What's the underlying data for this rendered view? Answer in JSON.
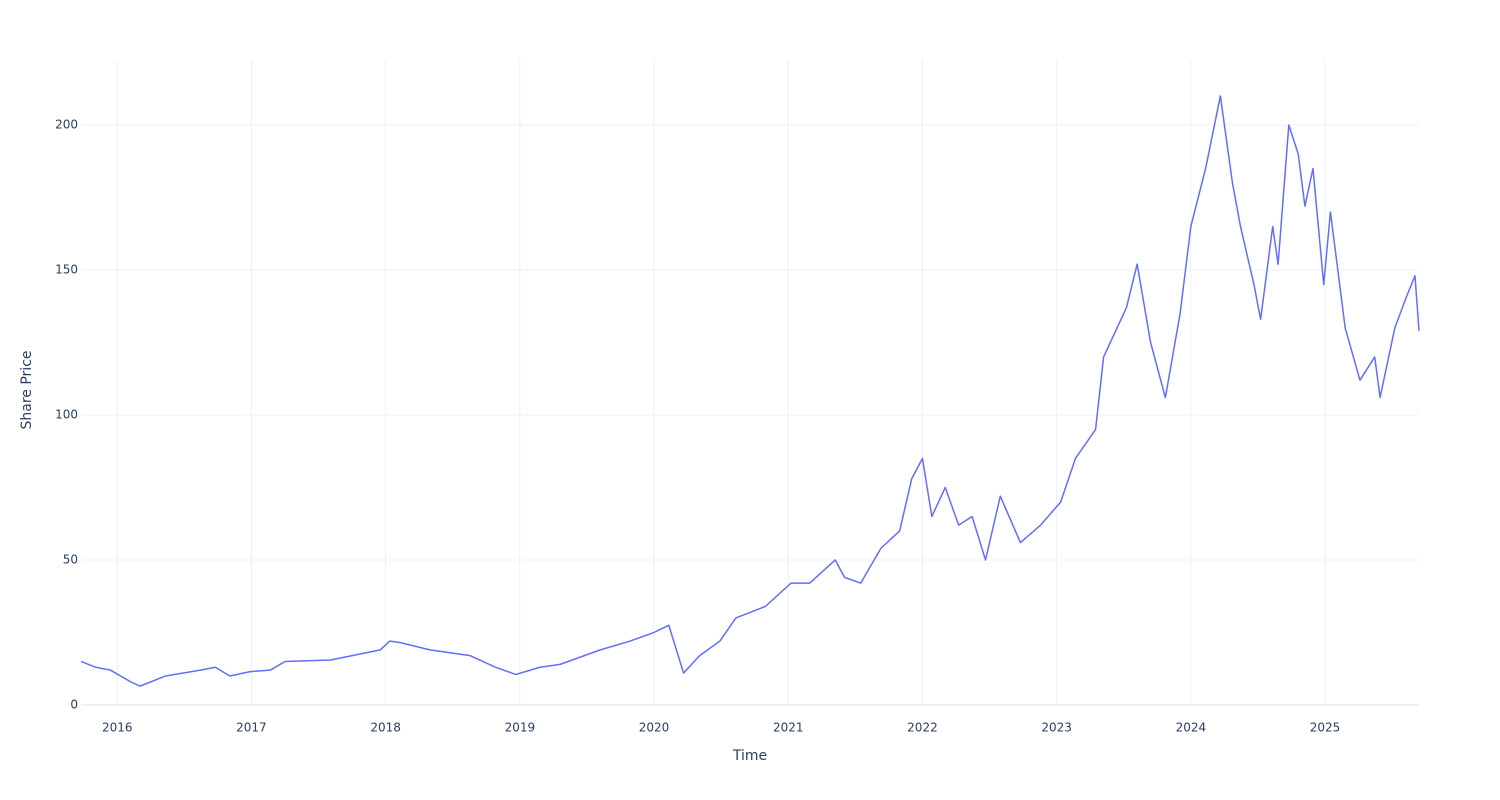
{
  "chart_data": {
    "type": "line",
    "x_label": "Time",
    "y_label": "Share Price",
    "x": [
      2015.73,
      2015.84,
      2015.95,
      2016.1,
      2016.17,
      2016.36,
      2016.62,
      2016.73,
      2016.84,
      2016.99,
      2017.14,
      2017.25,
      2017.59,
      2017.96,
      2018.03,
      2018.11,
      2018.33,
      2018.63,
      2018.82,
      2018.97,
      2019.15,
      2019.3,
      2019.6,
      2019.82,
      2020.0,
      2020.11,
      2020.22,
      2020.34,
      2020.49,
      2020.61,
      2020.83,
      2021.02,
      2021.16,
      2021.35,
      2021.42,
      2021.54,
      2021.69,
      2021.83,
      2021.92,
      2022.0,
      2022.07,
      2022.17,
      2022.27,
      2022.37,
      2022.47,
      2022.58,
      2022.73,
      2022.88,
      2023.03,
      2023.14,
      2023.29,
      2023.35,
      2023.52,
      2023.6,
      2023.7,
      2023.81,
      2023.92,
      2024.0,
      2024.11,
      2024.22,
      2024.31,
      2024.37,
      2024.47,
      2024.52,
      2024.61,
      2024.65,
      2024.73,
      2024.8,
      2024.85,
      2024.91,
      2024.99,
      2025.04,
      2025.15,
      2025.26,
      2025.37,
      2025.41,
      2025.52,
      2025.6,
      2025.67,
      2025.7
    ],
    "values": [
      15,
      13,
      12,
      8,
      6.5,
      10,
      12,
      13,
      10,
      11.5,
      12,
      15,
      15.5,
      19,
      22,
      21.5,
      19,
      17,
      13,
      10.5,
      13,
      14,
      19,
      22,
      25,
      27.5,
      11,
      17,
      22,
      30,
      34,
      42,
      42,
      50,
      44,
      42,
      54,
      60,
      78,
      85,
      65,
      75,
      62,
      65,
      50,
      72,
      56,
      62,
      70,
      85,
      95,
      120,
      137,
      152,
      125,
      106,
      135,
      165,
      185,
      210,
      180,
      165,
      145,
      133,
      165,
      152,
      200,
      190,
      172,
      185,
      145,
      170,
      130,
      112,
      120,
      106,
      130,
      140,
      148,
      129
    ],
    "color": "#636efa",
    "xlim": [
      2015.73,
      2025.7
    ],
    "xticks": [
      2016,
      2017,
      2018,
      2019,
      2020,
      2021,
      2022,
      2023,
      2024,
      2025
    ],
    "ylim": [
      -0.7,
      222.4
    ],
    "yticks": [
      0,
      50,
      100,
      150,
      200
    ],
    "grid": true
  }
}
